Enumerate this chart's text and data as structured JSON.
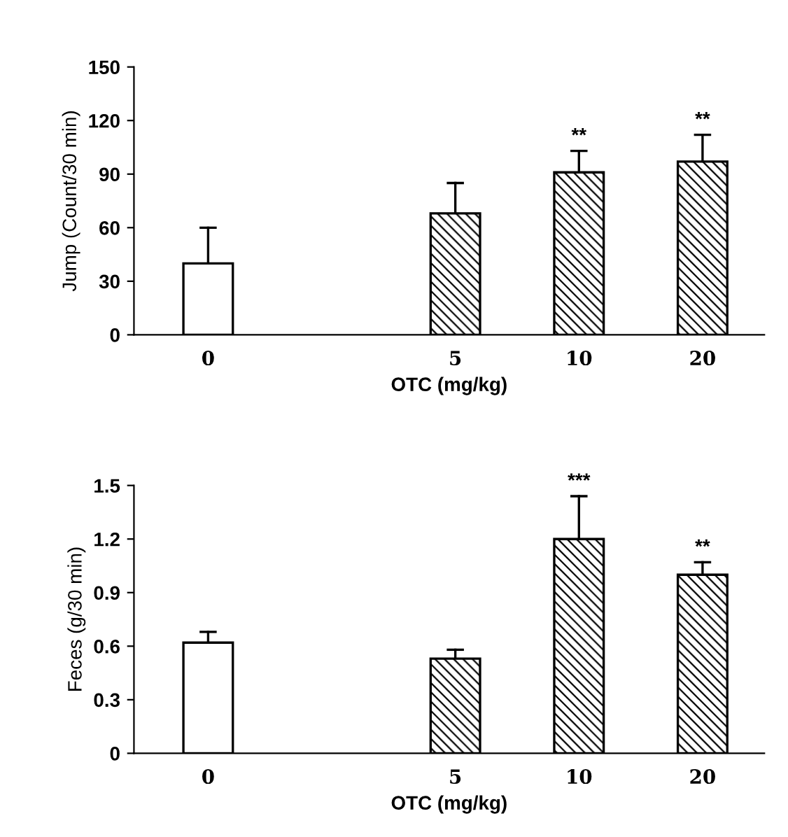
{
  "chart_data": [
    {
      "type": "bar",
      "ylabel": "Jump (Count/30 min)",
      "xlabel": "OTC (mg/kg)",
      "categories": [
        "0",
        null,
        "5",
        "10",
        "20"
      ],
      "values": [
        40,
        null,
        68,
        91,
        97
      ],
      "colors": [
        "#ffffff",
        null,
        "#000000",
        "#000000",
        "#000000"
      ],
      "errors": [
        [
          40,
          60
        ],
        null,
        [
          68,
          85
        ],
        [
          91,
          103
        ],
        [
          97,
          112
        ]
      ],
      "ylim": [
        0,
        150
      ],
      "yticks": [
        0,
        30,
        60,
        90,
        120,
        150
      ],
      "grid": false,
      "legend": false,
      "annotations": [
        {
          "text": "**",
          "x": "10",
          "y": 106
        },
        {
          "text": "**",
          "x": "20",
          "y": 115
        }
      ]
    },
    {
      "type": "bar",
      "ylabel": "Feces (g/30 min)",
      "xlabel": "OTC (mg/kg)",
      "categories": [
        "0",
        null,
        "5",
        "10",
        "20"
      ],
      "values": [
        0.62,
        null,
        0.53,
        1.2,
        1.0
      ],
      "colors": [
        "#ffffff",
        null,
        "#000000",
        "#000000",
        "#000000"
      ],
      "errors": [
        [
          0.62,
          0.68
        ],
        null,
        [
          0.53,
          0.58
        ],
        [
          1.2,
          1.44
        ],
        [
          1.0,
          1.07
        ]
      ],
      "ylim": [
        0,
        1.5
      ],
      "yticks": [
        0,
        {
          "value": 0.3,
          "label": "0.3"
        },
        {
          "value": 0.6,
          "label": "0.6"
        },
        {
          "value": 0.9,
          "label": "0.9"
        },
        {
          "value": 1.2,
          "label": "1.2"
        },
        {
          "value": 1.5,
          "label": "1.5"
        }
      ],
      "grid": false,
      "legend": false,
      "annotations": [
        {
          "text": "***",
          "x": "10",
          "y": 1.47
        },
        {
          "text": "**",
          "x": "20",
          "y": 1.1
        }
      ]
    }
  ]
}
